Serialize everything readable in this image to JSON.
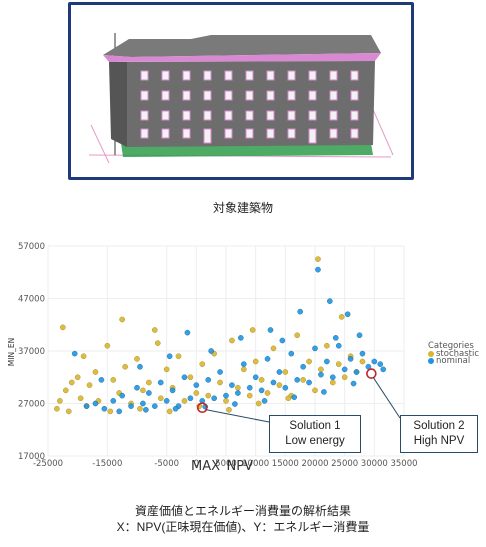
{
  "building": {
    "caption": "対象建築物"
  },
  "analysis": {
    "caption_line1": "資産価値とエネルギー消費量の解析結果",
    "caption_line2": "X：NPV(正味現在価値)、Y：エネルギー消費量"
  },
  "annotations": {
    "solution1": {
      "line1": "Solution 1",
      "line2": "Low energy"
    },
    "solution2": {
      "line1": "Solution 2",
      "line2": "High NPV"
    }
  },
  "colors": {
    "stochastic": "#d9b630",
    "nominal": "#1f95e0",
    "highlight": "#c0282d",
    "frame": "#1f3a7a"
  },
  "chart_data": {
    "type": "scatter",
    "xlabel": "MAX_NPV",
    "ylabel": "MIN_EN",
    "xlim": [
      -25000,
      35000
    ],
    "ylim": [
      17000,
      57000
    ],
    "xticks": [
      -25000,
      -15000,
      -5000,
      0,
      5000,
      10000,
      15000,
      20000,
      25000,
      30000,
      35000
    ],
    "yticks": [
      17000,
      27000,
      37000,
      47000,
      57000
    ],
    "grid": true,
    "legend": {
      "title": "Categories",
      "position": "right",
      "entries": [
        "stochastic",
        "nominal"
      ]
    },
    "highlighted_points": [
      {
        "label": "Solution 1",
        "x": 1000,
        "y": 26200
      },
      {
        "label": "Solution 2",
        "x": 29500,
        "y": 32700
      }
    ],
    "series": [
      {
        "name": "stochastic",
        "points": [
          [
            -23500,
            26000
          ],
          [
            -23000,
            27500
          ],
          [
            -22000,
            29500
          ],
          [
            -21500,
            25500
          ],
          [
            -21000,
            31000
          ],
          [
            -20000,
            32000
          ],
          [
            -19500,
            28000
          ],
          [
            -19000,
            36000
          ],
          [
            -18500,
            26500
          ],
          [
            -18000,
            30500
          ],
          [
            -17000,
            33000
          ],
          [
            -16500,
            27500
          ],
          [
            -15000,
            38000
          ],
          [
            -14000,
            31500
          ],
          [
            -13000,
            29000
          ],
          [
            -12000,
            34000
          ],
          [
            -11000,
            27000
          ],
          [
            -10000,
            35500
          ],
          [
            -9000,
            29500
          ],
          [
            -8000,
            31000
          ],
          [
            -7000,
            41000
          ],
          [
            -6000,
            28000
          ],
          [
            -5000,
            33500
          ],
          [
            -4000,
            30000
          ],
          [
            -3000,
            36000
          ],
          [
            -2000,
            27500
          ],
          [
            -1000,
            32000
          ],
          [
            0,
            29000
          ],
          [
            1000,
            34500
          ],
          [
            2000,
            28500
          ],
          [
            3000,
            36500
          ],
          [
            4000,
            31000
          ],
          [
            5000,
            27500
          ],
          [
            6000,
            39000
          ],
          [
            7000,
            30000
          ],
          [
            8000,
            33500
          ],
          [
            9000,
            28500
          ],
          [
            10000,
            35000
          ],
          [
            11000,
            31500
          ],
          [
            12000,
            29000
          ],
          [
            13000,
            37500
          ],
          [
            14000,
            30500
          ],
          [
            15000,
            33000
          ],
          [
            16000,
            28500
          ],
          [
            17000,
            40000
          ],
          [
            18000,
            31500
          ],
          [
            19000,
            35000
          ],
          [
            20000,
            29500
          ],
          [
            20500,
            54500
          ],
          [
            21000,
            33500
          ],
          [
            22000,
            38000
          ],
          [
            23000,
            31000
          ],
          [
            24000,
            34500
          ],
          [
            25000,
            32000
          ],
          [
            26000,
            36000
          ],
          [
            27000,
            33000
          ],
          [
            28000,
            35000
          ],
          [
            -22500,
            41500
          ],
          [
            -14500,
            25500
          ],
          [
            -9500,
            26000
          ],
          [
            -4500,
            25500
          ],
          [
            500,
            26500
          ],
          [
            5500,
            25800
          ],
          [
            10500,
            27000
          ],
          [
            15500,
            28000
          ],
          [
            -12500,
            43000
          ],
          [
            -6500,
            38500
          ],
          [
            9500,
            41000
          ],
          [
            24500,
            43500
          ]
        ]
      },
      {
        "name": "nominal",
        "points": [
          [
            -18500,
            26500
          ],
          [
            -17000,
            27000
          ],
          [
            -15500,
            26000
          ],
          [
            -14000,
            27500
          ],
          [
            -12500,
            28500
          ],
          [
            -11000,
            26500
          ],
          [
            -10000,
            30000
          ],
          [
            -9000,
            27000
          ],
          [
            -8000,
            29000
          ],
          [
            -7000,
            26500
          ],
          [
            -6000,
            31000
          ],
          [
            -5000,
            27500
          ],
          [
            -4000,
            29500
          ],
          [
            -3000,
            26500
          ],
          [
            -2000,
            32000
          ],
          [
            -1000,
            28000
          ],
          [
            0,
            30500
          ],
          [
            1000,
            27500
          ],
          [
            2000,
            31500
          ],
          [
            3000,
            28000
          ],
          [
            4000,
            33000
          ],
          [
            5000,
            28500
          ],
          [
            6000,
            30500
          ],
          [
            7000,
            29000
          ],
          [
            8000,
            34500
          ],
          [
            9000,
            30000
          ],
          [
            10000,
            32000
          ],
          [
            11000,
            29500
          ],
          [
            12000,
            35500
          ],
          [
            13000,
            31000
          ],
          [
            14000,
            33000
          ],
          [
            15000,
            30000
          ],
          [
            16000,
            36500
          ],
          [
            17000,
            31500
          ],
          [
            18000,
            34000
          ],
          [
            19000,
            31000
          ],
          [
            20000,
            37500
          ],
          [
            21000,
            32500
          ],
          [
            22000,
            35000
          ],
          [
            23000,
            32000
          ],
          [
            24000,
            38000
          ],
          [
            25000,
            33500
          ],
          [
            26000,
            35500
          ],
          [
            27000,
            33000
          ],
          [
            28000,
            36500
          ],
          [
            29000,
            34000
          ],
          [
            30000,
            35000
          ],
          [
            31000,
            34500
          ],
          [
            31500,
            33500
          ],
          [
            -13000,
            25500
          ],
          [
            -8500,
            25800
          ],
          [
            -3500,
            26000
          ],
          [
            1500,
            26400
          ],
          [
            6500,
            26900
          ],
          [
            11500,
            27500
          ],
          [
            16500,
            28200
          ],
          [
            21500,
            29200
          ],
          [
            26500,
            30800
          ],
          [
            -16000,
            31500
          ],
          [
            -9500,
            34000
          ],
          [
            -4500,
            36000
          ],
          [
            2500,
            37000
          ],
          [
            7500,
            39500
          ],
          [
            12500,
            41000
          ],
          [
            17500,
            44500
          ],
          [
            20500,
            52500
          ],
          [
            22500,
            46500
          ],
          [
            25500,
            44000
          ],
          [
            27500,
            40000
          ],
          [
            -20500,
            36500
          ],
          [
            -1500,
            40500
          ],
          [
            14500,
            39000
          ],
          [
            23500,
            39500
          ]
        ]
      }
    ]
  }
}
